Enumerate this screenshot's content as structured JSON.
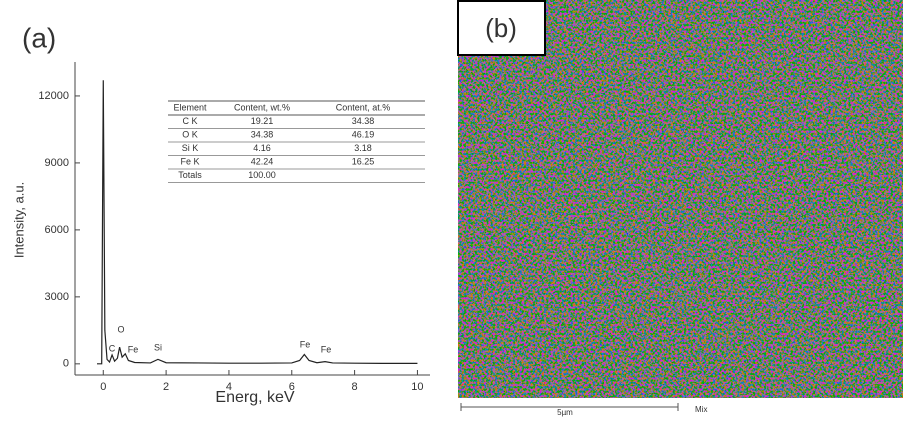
{
  "chart_data": {
    "type": "line",
    "panel_label": "(a)",
    "x_label": "Energ, keV",
    "y_label": "Intensity, a.u.",
    "x": [
      -0.2,
      -0.05,
      0,
      0.05,
      0.12,
      0.2,
      0.28,
      0.36,
      0.45,
      0.52,
      0.6,
      0.7,
      0.8,
      1.0,
      1.5,
      1.74,
      2.0,
      3.0,
      4.0,
      5.0,
      6.0,
      6.25,
      6.4,
      6.55,
      6.8,
      7.06,
      7.3,
      8.0,
      9.0,
      10.0
    ],
    "series": [
      {
        "color": "#222222",
        "values": [
          0,
          0,
          12700,
          1500,
          200,
          80,
          400,
          120,
          250,
          750,
          300,
          450,
          150,
          60,
          40,
          200,
          50,
          40,
          30,
          30,
          40,
          150,
          420,
          150,
          50,
          100,
          40,
          30,
          20,
          20
        ]
      }
    ],
    "xlim": [
      -0.9,
      10.4
    ],
    "xticks": [
      0,
      2,
      4,
      6,
      8,
      10
    ],
    "ylim": [
      -500,
      13520
    ],
    "yticks": [
      0,
      3000,
      6000,
      9000,
      12000
    ],
    "annotations": [
      "C",
      "O",
      "Fe",
      "Si",
      "Fe",
      "Fe"
    ]
  },
  "element_table": {
    "header": [
      "Element",
      "Content, wt.%",
      "Content, at.%"
    ],
    "rows": [
      [
        "C K",
        "19.21",
        "34.38"
      ],
      [
        "O K",
        "34.38",
        "46.19"
      ],
      [
        "Si K",
        "4.16",
        "3.18"
      ],
      [
        "Fe K",
        "42.24",
        "16.25"
      ],
      [
        "Totals",
        "100.00"
      ]
    ]
  },
  "map_panel": {
    "panel_label": "(b)",
    "scale_label": "5µm",
    "map_name": "Mix"
  }
}
